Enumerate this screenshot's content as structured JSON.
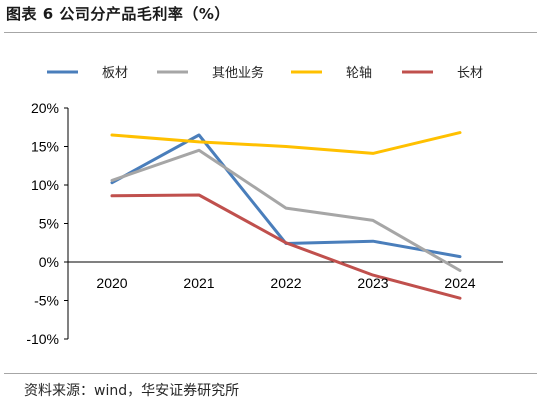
{
  "header": {
    "title": "图表 6 公司分产品毛利率（%）"
  },
  "footer": {
    "source": "资料来源：wind，华安证券研究所"
  },
  "chart_data": {
    "type": "line",
    "categories": [
      "2020",
      "2021",
      "2022",
      "2023",
      "2024"
    ],
    "ylim": [
      -10,
      20
    ],
    "yticks": [
      20,
      15,
      10,
      5,
      0,
      -5,
      -10
    ],
    "ytick_labels": [
      "20%",
      "15%",
      "10%",
      "5%",
      "0%",
      "-5%",
      "-10%"
    ],
    "grid": false,
    "legend_position": "top",
    "series": [
      {
        "name": "板材",
        "color": "#4a7ebb",
        "values": [
          10.3,
          16.5,
          2.4,
          2.7,
          0.7
        ]
      },
      {
        "name": "其他业务",
        "color": "#a6a6a6",
        "values": [
          10.6,
          14.5,
          7.0,
          5.4,
          -1.1
        ]
      },
      {
        "name": "轮轴",
        "color": "#ffc000",
        "values": [
          16.5,
          15.6,
          15.0,
          14.1,
          16.8
        ]
      },
      {
        "name": "长材",
        "color": "#c0504d",
        "values": [
          8.6,
          8.7,
          2.5,
          -1.7,
          -4.7
        ]
      }
    ]
  }
}
